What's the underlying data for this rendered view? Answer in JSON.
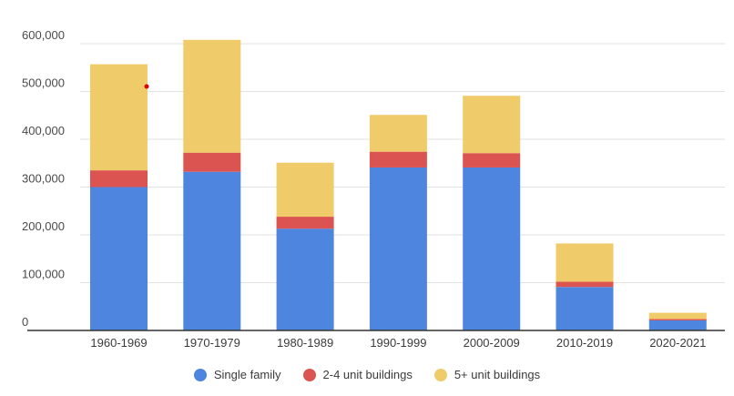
{
  "chart_data": {
    "type": "bar",
    "stacked": true,
    "title": "",
    "xlabel": "",
    "ylabel": "",
    "ylim": [
      0,
      600000
    ],
    "y_ticks": [
      0,
      100000,
      200000,
      300000,
      400000,
      500000,
      600000
    ],
    "y_tick_labels": [
      "0",
      "100,000",
      "200,000",
      "300,000",
      "400,000",
      "500,000",
      "600,000"
    ],
    "grid": true,
    "legend_position": "bottom-center",
    "categories": [
      "1960-1969",
      "1970-1979",
      "1980-1989",
      "1990-1999",
      "2000-2009",
      "2010-2019",
      "2020-2021"
    ],
    "series": [
      {
        "name": "Single family",
        "color": "#4e86df",
        "values": [
          300000,
          332000,
          213000,
          341000,
          341000,
          91000,
          21000
        ]
      },
      {
        "name": "2-4 unit buildings",
        "color": "#dc5451",
        "values": [
          35000,
          40000,
          25000,
          33000,
          30000,
          11000,
          3000
        ]
      },
      {
        "name": "5+ unit buildings",
        "color": "#f0cb6a",
        "values": [
          222000,
          236000,
          113000,
          77000,
          120000,
          80000,
          13000
        ]
      }
    ]
  }
}
